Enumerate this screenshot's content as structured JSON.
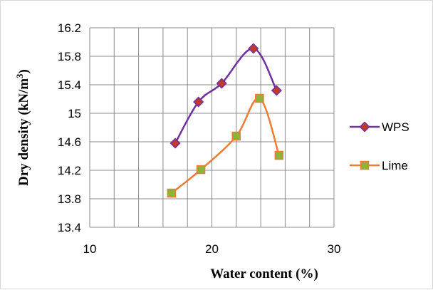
{
  "chart_data": {
    "type": "scatter",
    "xlabel": "Water content (%)",
    "ylabel_main": "Dry density (kN/m",
    "ylabel_sup": "3",
    "ylabel_close": ")",
    "xlim": [
      10,
      30
    ],
    "ylim": [
      13.4,
      16.2
    ],
    "x_ticks": [
      10,
      20,
      30
    ],
    "x_tick_labels": [
      "10",
      "20",
      "30"
    ],
    "x_minor_step": 2,
    "y_ticks": [
      13.4,
      13.8,
      14.2,
      14.6,
      15,
      15.4,
      15.8,
      16.2
    ],
    "y_tick_labels": [
      "13.4",
      "13.8",
      "14.2",
      "14.6",
      "15",
      "15.4",
      "15.8",
      "16.2"
    ],
    "grid": true,
    "legend_position": "right",
    "series": [
      {
        "name": "WPS",
        "marker": "diamond",
        "color": "#7030A0",
        "marker_fill": "#C0392B",
        "smooth": true,
        "x": [
          17.0,
          18.9,
          20.8,
          23.4,
          25.3
        ],
        "y": [
          14.58,
          15.16,
          15.42,
          15.91,
          15.32
        ]
      },
      {
        "name": "Lime",
        "marker": "square",
        "color": "#ED7D31",
        "marker_fill": "#8DB33A",
        "smooth": true,
        "x": [
          16.7,
          19.1,
          22.0,
          23.9,
          25.5
        ],
        "y": [
          13.88,
          14.21,
          14.68,
          15.21,
          14.41
        ]
      }
    ]
  }
}
